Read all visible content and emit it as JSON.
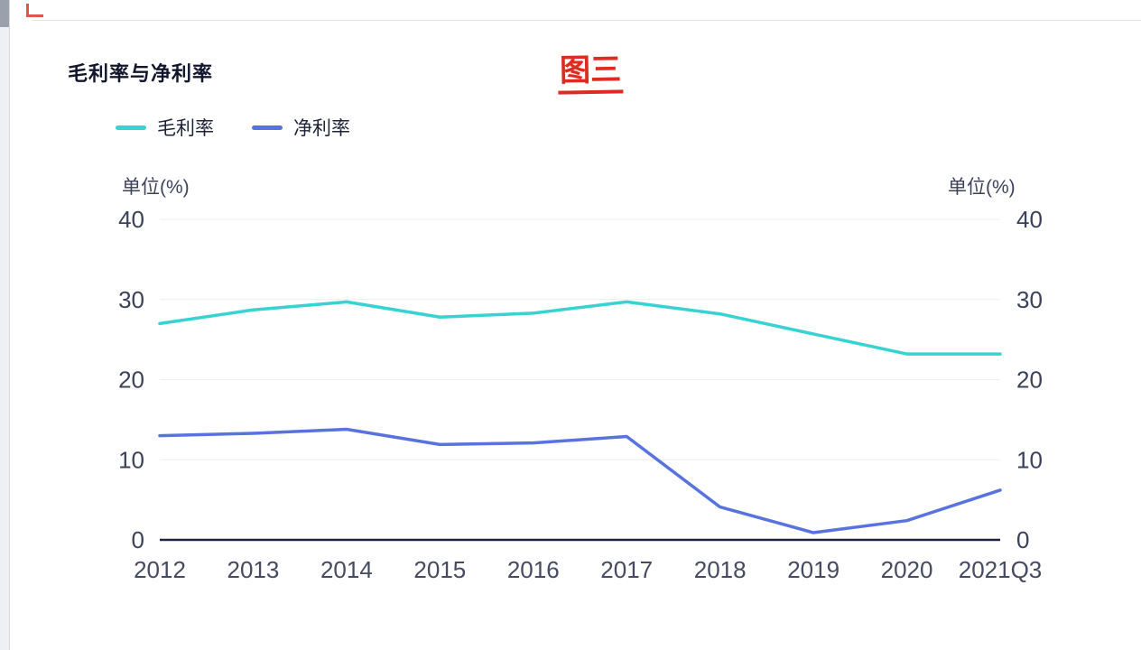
{
  "chart_data": {
    "type": "line",
    "title": "毛利率与净利率",
    "annotation": "图三",
    "categories": [
      "2012",
      "2013",
      "2014",
      "2015",
      "2016",
      "2017",
      "2018",
      "2019",
      "2020",
      "2021Q3"
    ],
    "series": [
      {
        "name": "毛利率",
        "color": "#38D2D2",
        "values": [
          27.0,
          28.7,
          29.7,
          27.8,
          28.3,
          29.7,
          28.2,
          25.7,
          23.2,
          23.2
        ]
      },
      {
        "name": "净利率",
        "color": "#5873DE",
        "values": [
          13.0,
          13.3,
          13.8,
          11.9,
          12.1,
          12.9,
          4.1,
          0.9,
          2.4,
          6.2
        ]
      }
    ],
    "ylabel_left": "单位(%)",
    "ylabel_right": "单位(%)",
    "yticks": [
      0,
      10,
      20,
      30,
      40
    ],
    "ylim": [
      0,
      40
    ],
    "grid": true,
    "legend_position": "top-left",
    "colors": {
      "axis_line": "#1c2342",
      "grid_line": "#ededf2",
      "tick_text": "#3c415a",
      "annotation_red": "#dd2b22"
    }
  }
}
